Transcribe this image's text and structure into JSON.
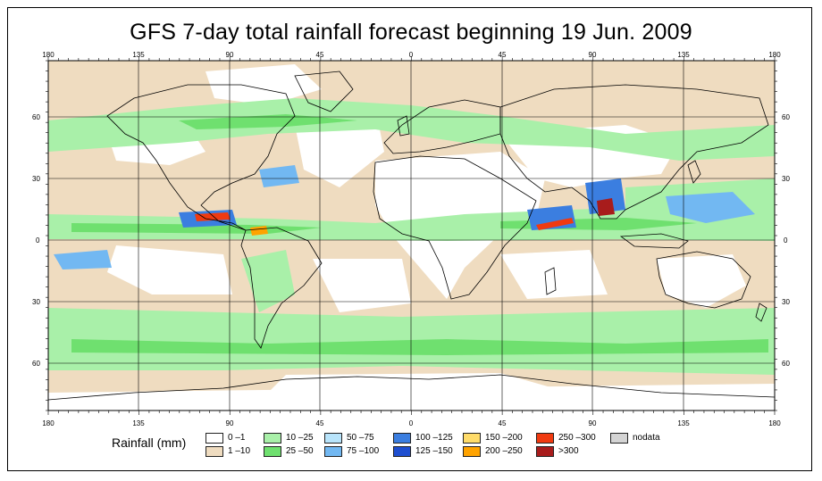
{
  "title": "GFS 7-day total rainfall forecast beginning 19 Jun. 2009",
  "lon_ticks": [
    "180",
    "135",
    "90",
    "45",
    "0",
    "45",
    "90",
    "135",
    "180"
  ],
  "lat_ticks": [
    "60",
    "30",
    "0",
    "30",
    "60"
  ],
  "legend": {
    "title": "Rainfall (mm)",
    "bins": [
      {
        "label": "0 –1",
        "color": "#ffffff"
      },
      {
        "label": "1 –10",
        "color": "#efdcc0"
      },
      {
        "label": "10 –25",
        "color": "#a9f0a9"
      },
      {
        "label": "25 –50",
        "color": "#6fe06f"
      },
      {
        "label": "50 –75",
        "color": "#b8e4fb"
      },
      {
        "label": "75 –100",
        "color": "#72b8f2"
      },
      {
        "label": "100 –125",
        "color": "#3b7ee0"
      },
      {
        "label": "125 –150",
        "color": "#1f4fd0"
      },
      {
        "label": "150 –200",
        "color": "#ffdc6a"
      },
      {
        "label": "200 –250",
        "color": "#ffa300"
      },
      {
        "label": "250 –300",
        "color": "#f03a10"
      },
      {
        "label": ">300",
        "color": "#a81c1c"
      },
      {
        "label": "nodata",
        "color": "#d4d4d4"
      }
    ]
  }
}
